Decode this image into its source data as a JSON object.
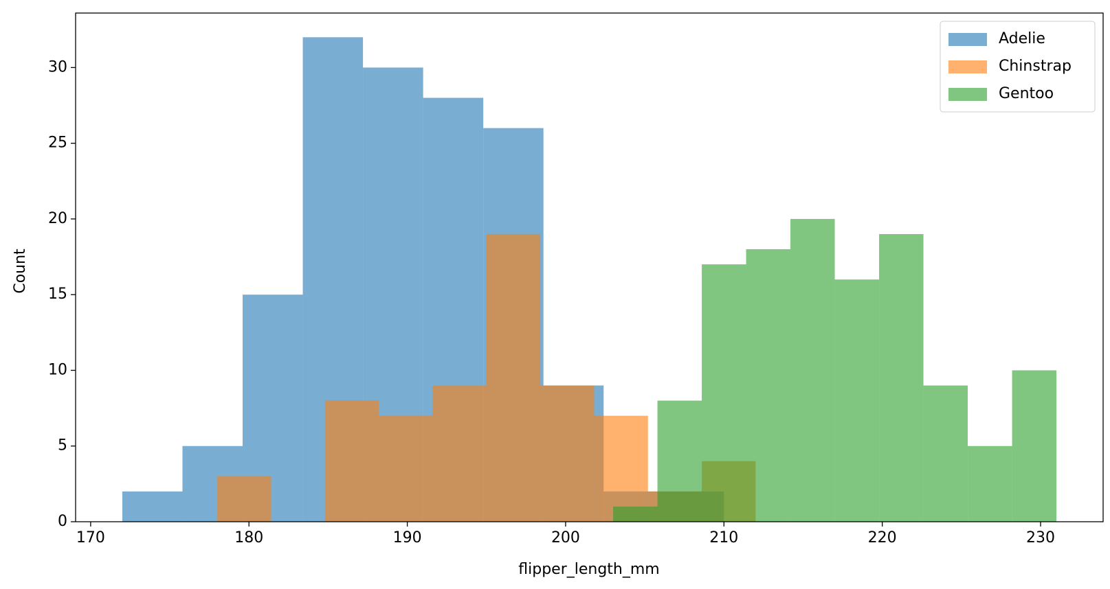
{
  "chart_data": {
    "type": "histogram",
    "xlabel": "flipper_length_mm",
    "ylabel": "Count",
    "xlim": [
      169.05,
      233.95
    ],
    "ylim": [
      0,
      33.6
    ],
    "xticks": [
      170,
      180,
      190,
      200,
      210,
      220,
      230
    ],
    "yticks": [
      0,
      5,
      10,
      15,
      20,
      25,
      30
    ],
    "legend": "upper right",
    "opacity": 0.6,
    "series": [
      {
        "name": "Adelie",
        "color": "#1f77b4",
        "bins": [
          172,
          175.8,
          179.6,
          183.4,
          187.2,
          191,
          194.8,
          198.6,
          202.4,
          206.2,
          210
        ],
        "values": [
          2,
          5,
          15,
          32,
          30,
          28,
          26,
          9,
          2,
          2
        ]
      },
      {
        "name": "Chinstrap",
        "color": "#ff7f0e",
        "bins": [
          178,
          181.4,
          184.8,
          188.2,
          191.6,
          195,
          198.4,
          201.8,
          205.2,
          208.6,
          212
        ],
        "values": [
          3,
          0,
          8,
          7,
          9,
          19,
          9,
          7,
          2,
          4
        ]
      },
      {
        "name": "Gentoo",
        "color": "#2ca02c",
        "bins": [
          203,
          205.8,
          208.6,
          211.4,
          214.2,
          217,
          219.8,
          222.6,
          225.4,
          228.2,
          231
        ],
        "values": [
          1,
          8,
          17,
          18,
          20,
          16,
          19,
          9,
          5,
          10
        ]
      }
    ]
  }
}
